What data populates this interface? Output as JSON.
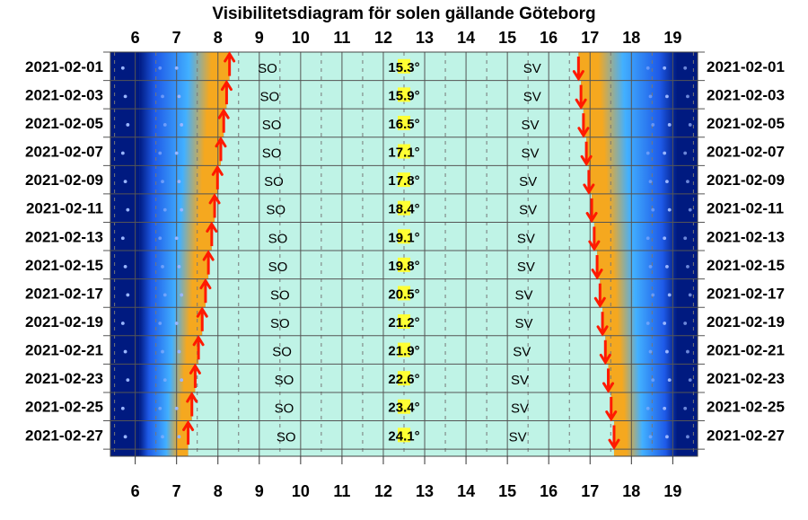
{
  "chart_data": {
    "type": "table",
    "title": "Visibilitetsdiagram för solen gällande Göteborg",
    "x_ticks": [
      6,
      7,
      8,
      9,
      10,
      11,
      12,
      13,
      14,
      15,
      16,
      17,
      18,
      19
    ],
    "x_range": [
      5.4,
      19.6
    ],
    "dates": [
      "2021-02-01",
      "2021-02-03",
      "2021-02-05",
      "2021-02-07",
      "2021-02-09",
      "2021-02-11",
      "2021-02-13",
      "2021-02-15",
      "2021-02-17",
      "2021-02-19",
      "2021-02-21",
      "2021-02-23",
      "2021-02-25",
      "2021-02-27"
    ],
    "sunrise": [
      8.28,
      8.21,
      8.14,
      8.07,
      7.99,
      7.92,
      7.85,
      7.77,
      7.7,
      7.62,
      7.53,
      7.45,
      7.37,
      7.28
    ],
    "sunset": [
      16.72,
      16.78,
      16.84,
      16.91,
      16.97,
      17.04,
      17.1,
      17.17,
      17.24,
      17.3,
      17.37,
      17.44,
      17.51,
      17.58
    ],
    "rise_dir": [
      "SO",
      "SO",
      "SO",
      "SO",
      "SO",
      "SO",
      "SO",
      "SO",
      "SO",
      "SO",
      "SO",
      "SO",
      "SO",
      "SO"
    ],
    "rise_label_x": [
      9.2,
      9.25,
      9.3,
      9.3,
      9.35,
      9.4,
      9.45,
      9.45,
      9.5,
      9.5,
      9.55,
      9.6,
      9.6,
      9.65
    ],
    "set_dir": [
      "SV",
      "SV",
      "SV",
      "SV",
      "SV",
      "SV",
      "SV",
      "SV",
      "SV",
      "SV",
      "SV",
      "SV",
      "SV",
      "SV"
    ],
    "set_label_x": [
      15.6,
      15.6,
      15.55,
      15.55,
      15.5,
      15.5,
      15.45,
      15.45,
      15.4,
      15.4,
      15.35,
      15.3,
      15.3,
      15.25
    ],
    "max_altitude": [
      "15.3°",
      "15.9°",
      "16.5°",
      "17.1°",
      "17.8°",
      "18.4°",
      "19.1°",
      "19.8°",
      "20.5°",
      "21.2°",
      "21.9°",
      "22.6°",
      "23.4°",
      "24.1°"
    ],
    "colors": {
      "daylight": "#bff3e6",
      "night_dark": "#001a80",
      "night_mid": "#1e5ae8",
      "twilight_light": "#42b0ff",
      "twilight_orange": "#f5a81f",
      "arrow": "#ff1a00",
      "noon_marker": "#ffff33",
      "grid": "#555555"
    }
  }
}
